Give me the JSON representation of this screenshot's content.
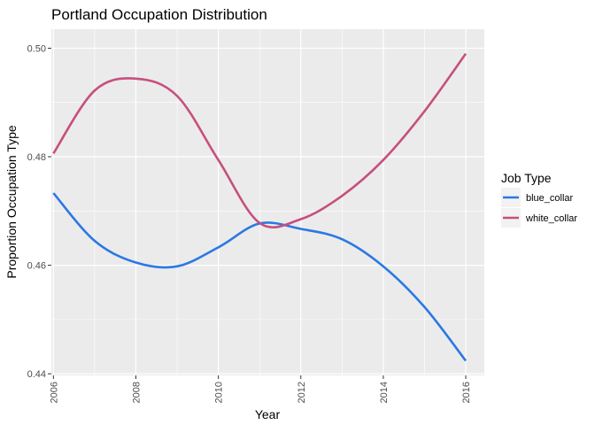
{
  "chart_data": {
    "type": "line",
    "title": "Portland Occupation Distribution",
    "xlabel": "Year",
    "ylabel": "Proportion Occupation Type",
    "xlim": [
      2005.95,
      2016.45
    ],
    "ylim": [
      0.4397,
      0.5035
    ],
    "x_ticks": [
      2006,
      2008,
      2010,
      2012,
      2014,
      2016
    ],
    "x_tick_labels": [
      "2006",
      "2008",
      "2010",
      "2012",
      "2014",
      "2016"
    ],
    "y_ticks": [
      0.44,
      0.46,
      0.48,
      0.5
    ],
    "y_tick_labels": [
      "0.44",
      "0.46",
      "0.48",
      "0.50"
    ],
    "grid": true,
    "legend": {
      "title": "Job Type",
      "position": "right"
    },
    "series": [
      {
        "name": "blue_collar",
        "color": "#2b78e4",
        "x": [
          2006,
          2007,
          2008,
          2009,
          2010,
          2011,
          2012,
          2013,
          2014,
          2015,
          2016
        ],
        "y": [
          0.4733,
          0.4645,
          0.4605,
          0.4598,
          0.4633,
          0.4677,
          0.4667,
          0.4648,
          0.4598,
          0.4523,
          0.4424
        ]
      },
      {
        "name": "white_collar",
        "color": "#c64f7e",
        "x": [
          2006,
          2007,
          2008,
          2009,
          2010,
          2011,
          2012,
          2013,
          2014,
          2015,
          2016
        ],
        "y": [
          0.4806,
          0.4922,
          0.4944,
          0.4912,
          0.4794,
          0.4678,
          0.4685,
          0.4728,
          0.4794,
          0.4884,
          0.499
        ]
      }
    ]
  }
}
